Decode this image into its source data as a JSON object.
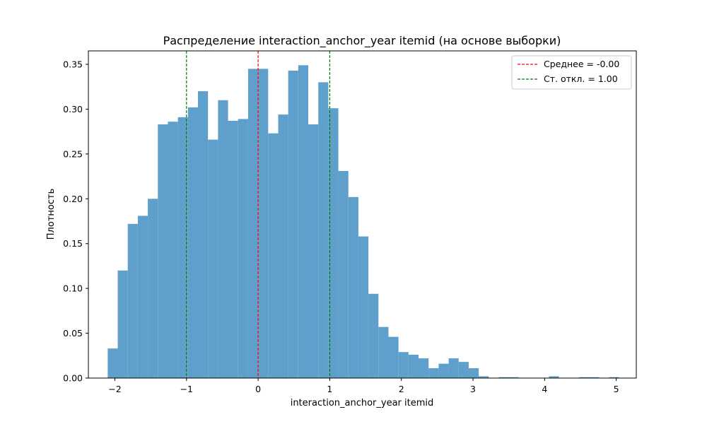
{
  "chart_data": {
    "type": "bar",
    "title": "Распределение interaction_anchor_year itemid (на основе выборки)",
    "xlabel": "interaction_anchor_year itemid",
    "ylabel": "Плотность",
    "xlim": [
      -2.37,
      5.28
    ],
    "ylim": [
      0,
      0.365
    ],
    "xticks": [
      -2,
      -1,
      0,
      1,
      2,
      3,
      4,
      5
    ],
    "xtick_labels": [
      "−2",
      "−1",
      "0",
      "1",
      "2",
      "3",
      "4",
      "5"
    ],
    "yticks": [
      0.0,
      0.05,
      0.1,
      0.15,
      0.2,
      0.25,
      0.3,
      0.35
    ],
    "ytick_labels": [
      "0.00",
      "0.05",
      "0.10",
      "0.15",
      "0.20",
      "0.25",
      "0.30",
      "0.35"
    ],
    "bin_start": -2.1,
    "bin_width": 0.14,
    "values": [
      0.033,
      0.12,
      0.172,
      0.181,
      0.2,
      0.283,
      0.286,
      0.291,
      0.302,
      0.32,
      0.266,
      0.31,
      0.287,
      0.289,
      0.345,
      0.345,
      0.273,
      0.294,
      0.343,
      0.349,
      0.283,
      0.33,
      0.301,
      0.231,
      0.202,
      0.158,
      0.094,
      0.057,
      0.046,
      0.029,
      0.026,
      0.022,
      0.011,
      0.016,
      0.022,
      0.018,
      0.011,
      0.002,
      0.0,
      0.001,
      0.001,
      0.0,
      0.0,
      0.0,
      0.002,
      0.0,
      0.0,
      0.001,
      0.001,
      0.0,
      0.001
    ],
    "bar_color": "#5f9fcc",
    "grid": false,
    "vlines": [
      {
        "name": "mean-line",
        "x": 0.0,
        "color": "#ff0000"
      },
      {
        "name": "std-line-minus",
        "x": -1.0,
        "color": "#008000"
      },
      {
        "name": "std-line-plus",
        "x": 1.0,
        "color": "#008000"
      }
    ],
    "legend": {
      "position": "top-right",
      "entries": [
        {
          "label": "Среднее = -0.00",
          "color": "#ff0000"
        },
        {
          "label": "Ст. откл. = 1.00",
          "color": "#008000"
        }
      ]
    }
  }
}
